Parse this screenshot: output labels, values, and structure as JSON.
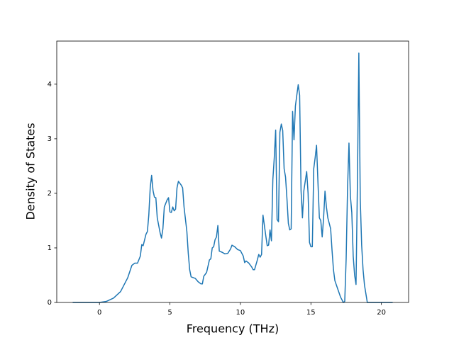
{
  "chart_data": {
    "type": "line",
    "xlabel": "Frequency (THz)",
    "ylabel": "Density of States",
    "xlim": [
      -3.03,
      21.93
    ],
    "ylim": [
      0,
      4.79
    ],
    "xticks": [
      0,
      5,
      10,
      15,
      20
    ],
    "yticks": [
      0,
      1,
      2,
      3,
      4
    ],
    "grid": false,
    "series": [
      {
        "color": "#1f77b4",
        "x": [
          -1.9,
          0,
          0.5,
          1,
          1.5,
          2,
          2.3,
          2.5,
          2.7,
          2.9,
          3.0,
          3.1,
          3.3,
          3.4,
          3.5,
          3.6,
          3.7,
          3.8,
          3.9,
          4.0,
          4.1,
          4.3,
          4.4,
          4.5,
          4.6,
          4.8,
          4.9,
          5.0,
          5.1,
          5.2,
          5.3,
          5.4,
          5.5,
          5.6,
          5.8,
          5.9,
          6.0,
          6.2,
          6.3,
          6.4,
          6.5,
          6.8,
          7.0,
          7.2,
          7.3,
          7.4,
          7.6,
          7.8,
          7.9,
          8.0,
          8.1,
          8.2,
          8.3,
          8.4,
          8.5,
          8.7,
          8.9,
          9.1,
          9.3,
          9.4,
          9.6,
          9.8,
          10.0,
          10.2,
          10.3,
          10.4,
          10.6,
          10.8,
          10.9,
          11.0,
          11.2,
          11.3,
          11.4,
          11.5,
          11.6,
          11.8,
          11.9,
          12.0,
          12.1,
          12.2,
          12.3,
          12.4,
          12.5,
          12.6,
          12.7,
          12.8,
          12.9,
          13.0,
          13.1,
          13.2,
          13.3,
          13.4,
          13.5,
          13.6,
          13.7,
          13.8,
          13.9,
          14.0,
          14.1,
          14.2,
          14.3,
          14.4,
          14.5,
          14.7,
          14.8,
          14.9,
          15.0,
          15.1,
          15.2,
          15.3,
          15.4,
          15.5,
          15.6,
          15.7,
          15.8,
          15.9,
          16.0,
          16.1,
          16.2,
          16.3,
          16.4,
          16.5,
          16.6,
          16.7,
          16.9,
          17.1,
          17.3,
          17.4,
          17.5,
          17.6,
          17.7,
          17.8,
          17.9,
          18.0,
          18.1,
          18.2,
          18.3,
          18.4,
          18.5,
          18.6,
          18.7,
          18.8,
          19.0,
          20.8
        ],
        "values": [
          0,
          0,
          0.02,
          0.08,
          0.2,
          0.45,
          0.68,
          0.72,
          0.72,
          0.85,
          1.06,
          1.04,
          1.25,
          1.3,
          1.6,
          2.1,
          2.33,
          2.05,
          1.93,
          1.92,
          1.55,
          1.28,
          1.18,
          1.35,
          1.75,
          1.88,
          1.92,
          1.66,
          1.65,
          1.75,
          1.68,
          1.71,
          2.1,
          2.22,
          2.15,
          2.1,
          1.75,
          1.3,
          0.9,
          0.6,
          0.47,
          0.44,
          0.38,
          0.34,
          0.34,
          0.48,
          0.55,
          0.78,
          0.8,
          1.0,
          1.02,
          1.15,
          1.2,
          1.41,
          0.94,
          0.92,
          0.89,
          0.9,
          0.98,
          1.05,
          1.02,
          0.97,
          0.95,
          0.85,
          0.73,
          0.76,
          0.72,
          0.65,
          0.6,
          0.6,
          0.78,
          0.88,
          0.83,
          0.88,
          1.6,
          1.22,
          1.04,
          1.05,
          1.33,
          1.13,
          2.25,
          2.65,
          3.16,
          1.52,
          1.48,
          3.12,
          3.27,
          3.15,
          2.45,
          2.3,
          1.9,
          1.45,
          1.33,
          1.35,
          3.5,
          2.98,
          3.6,
          3.8,
          3.99,
          3.8,
          2.05,
          1.55,
          2.05,
          2.4,
          2.0,
          1.1,
          1.02,
          1.02,
          2.45,
          2.65,
          2.88,
          2.2,
          1.55,
          1.5,
          1.2,
          1.55,
          2.04,
          1.75,
          1.55,
          1.45,
          1.35,
          0.95,
          0.6,
          0.4,
          0.25,
          0.1,
          0.0,
          0.02,
          0.8,
          2.1,
          2.92,
          1.95,
          1.65,
          0.85,
          0.5,
          0.33,
          2.2,
          4.57,
          1.9,
          1.05,
          0.6,
          0.32,
          0,
          0
        ]
      }
    ]
  }
}
